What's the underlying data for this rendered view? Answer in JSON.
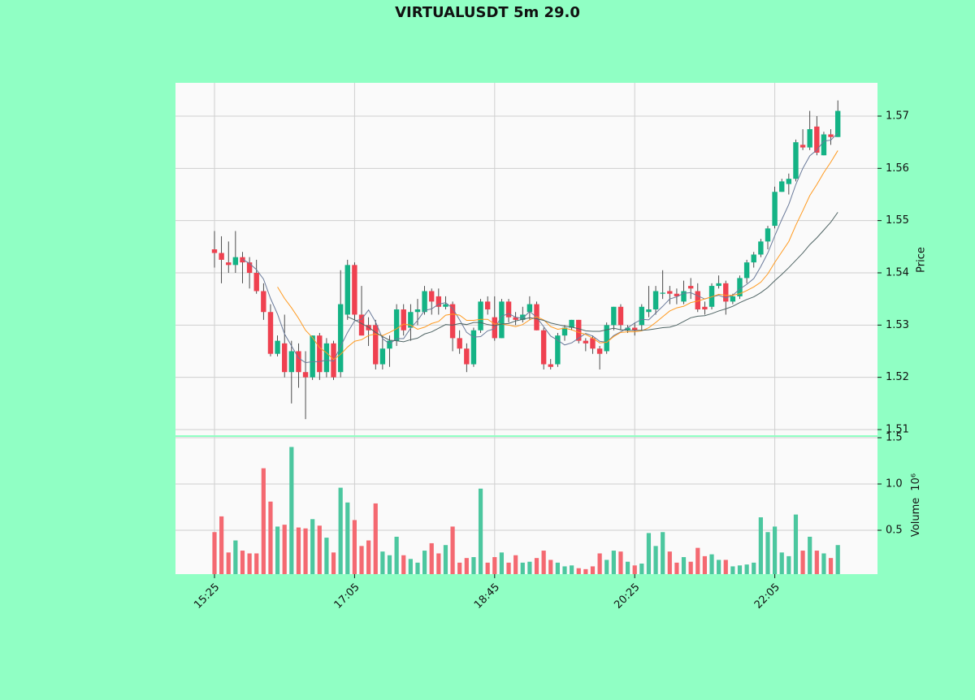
{
  "chart_data": {
    "type": "candlestick",
    "title": "VIRTUALUSDT 5m 29.0",
    "categories": [
      "15:25",
      null,
      null,
      null,
      null,
      null,
      null,
      null,
      null,
      null,
      null,
      null,
      null,
      null,
      null,
      null,
      null,
      null,
      null,
      null,
      "17:05",
      null,
      null,
      null,
      null,
      null,
      null,
      null,
      null,
      null,
      null,
      null,
      null,
      null,
      null,
      null,
      null,
      null,
      null,
      null,
      "18:45",
      null,
      null,
      null,
      null,
      null,
      null,
      null,
      null,
      null,
      null,
      null,
      null,
      null,
      null,
      null,
      null,
      null,
      null,
      null,
      "20:25",
      null,
      null,
      null,
      null,
      null,
      null,
      null,
      null,
      null,
      null,
      null,
      null,
      null,
      null,
      null,
      null,
      null,
      null,
      null,
      "22:05",
      null,
      null,
      null,
      null,
      null,
      null,
      null,
      null,
      null
    ],
    "open": [
      1.5445,
      1.5438,
      1.542,
      1.5415,
      1.543,
      1.542,
      1.54,
      1.5365,
      1.5325,
      1.5245,
      1.5265,
      1.521,
      1.525,
      1.521,
      1.52,
      1.528,
      1.521,
      1.5265,
      1.521,
      1.532,
      1.5415,
      1.532,
      1.53,
      1.53,
      1.5225,
      1.5255,
      1.527,
      1.533,
      1.5295,
      1.5325,
      1.5325,
      1.5365,
      1.5355,
      1.5335,
      1.534,
      1.5275,
      1.5255,
      1.5225,
      1.529,
      1.5345,
      1.5315,
      1.5275,
      1.5345,
      1.5315,
      1.531,
      1.5325,
      1.534,
      1.529,
      1.5225,
      1.5225,
      1.528,
      1.5295,
      1.531,
      1.527,
      1.5275,
      1.5255,
      1.525,
      1.53,
      1.5335,
      1.529,
      1.5295,
      1.53,
      1.5325,
      1.533,
      1.536,
      1.5365,
      1.536,
      1.5345,
      1.5375,
      1.5365,
      1.5335,
      1.5335,
      1.5375,
      1.538,
      1.5345,
      1.5355,
      1.539,
      1.542,
      1.5435,
      1.546,
      1.549,
      1.5555,
      1.557,
      1.558,
      1.5645,
      1.564,
      1.568,
      1.5625,
      1.5665,
      1.566
    ],
    "high": [
      1.548,
      1.547,
      1.546,
      1.548,
      1.544,
      1.543,
      1.5425,
      1.538,
      1.534,
      1.528,
      1.532,
      1.527,
      1.5265,
      1.525,
      1.528,
      1.5285,
      1.5275,
      1.527,
      1.5405,
      1.5425,
      1.542,
      1.5375,
      1.5315,
      1.531,
      1.528,
      1.528,
      1.534,
      1.534,
      1.534,
      1.535,
      1.5375,
      1.537,
      1.537,
      1.5355,
      1.5345,
      1.529,
      1.5265,
      1.5295,
      1.535,
      1.5355,
      1.5355,
      1.535,
      1.535,
      1.5325,
      1.5335,
      1.5355,
      1.5345,
      1.5295,
      1.5235,
      1.5285,
      1.53,
      1.531,
      1.531,
      1.5275,
      1.528,
      1.526,
      1.5305,
      1.5335,
      1.534,
      1.53,
      1.5305,
      1.534,
      1.5375,
      1.5375,
      1.5405,
      1.5375,
      1.537,
      1.5385,
      1.539,
      1.538,
      1.5345,
      1.538,
      1.5395,
      1.5385,
      1.536,
      1.5395,
      1.5425,
      1.544,
      1.5465,
      1.549,
      1.5565,
      1.558,
      1.559,
      1.5655,
      1.5675,
      1.571,
      1.57,
      1.567,
      1.5675,
      1.573
    ],
    "low": [
      1.541,
      1.538,
      1.54,
      1.54,
      1.538,
      1.537,
      1.536,
      1.531,
      1.524,
      1.524,
      1.52,
      1.515,
      1.518,
      1.512,
      1.5195,
      1.5195,
      1.52,
      1.5195,
      1.52,
      1.531,
      1.531,
      1.528,
      1.526,
      1.5215,
      1.5215,
      1.522,
      1.526,
      1.528,
      1.527,
      1.53,
      1.532,
      1.532,
      1.532,
      1.533,
      1.525,
      1.5245,
      1.521,
      1.522,
      1.5285,
      1.532,
      1.527,
      1.5275,
      1.5305,
      1.53,
      1.5305,
      1.531,
      1.529,
      1.5215,
      1.5215,
      1.522,
      1.527,
      1.529,
      1.5265,
      1.525,
      1.5245,
      1.5215,
      1.5245,
      1.529,
      1.529,
      1.5285,
      1.528,
      1.529,
      1.5315,
      1.532,
      1.535,
      1.534,
      1.534,
      1.534,
      1.535,
      1.5325,
      1.532,
      1.533,
      1.537,
      1.532,
      1.534,
      1.535,
      1.538,
      1.541,
      1.543,
      1.5445,
      1.5485,
      1.5555,
      1.555,
      1.5575,
      1.5635,
      1.5635,
      1.5625,
      1.5625,
      1.5645,
      1.566
    ],
    "close": [
      1.5438,
      1.5425,
      1.5415,
      1.543,
      1.542,
      1.54,
      1.5365,
      1.5325,
      1.5245,
      1.527,
      1.521,
      1.525,
      1.521,
      1.52,
      1.528,
      1.521,
      1.5265,
      1.52,
      1.534,
      1.5415,
      1.532,
      1.528,
      1.529,
      1.5225,
      1.5255,
      1.527,
      1.533,
      1.529,
      1.5325,
      1.533,
      1.5365,
      1.5345,
      1.5335,
      1.534,
      1.5275,
      1.5255,
      1.5225,
      1.529,
      1.5345,
      1.533,
      1.5275,
      1.5345,
      1.5315,
      1.531,
      1.532,
      1.534,
      1.529,
      1.5225,
      1.522,
      1.528,
      1.5295,
      1.531,
      1.527,
      1.5265,
      1.5255,
      1.5245,
      1.53,
      1.5335,
      1.53,
      1.5295,
      1.529,
      1.5335,
      1.533,
      1.5365,
      1.5362,
      1.536,
      1.5355,
      1.5365,
      1.537,
      1.533,
      1.533,
      1.5375,
      1.538,
      1.5345,
      1.5355,
      1.539,
      1.542,
      1.5435,
      1.546,
      1.5485,
      1.5555,
      1.5575,
      1.558,
      1.565,
      1.564,
      1.5675,
      1.563,
      1.5665,
      1.566,
      1.571
    ],
    "up_color": "#14b385",
    "down_color": "#ef4150",
    "ylabel": "Price",
    "ylim": [
      1.50891,
      1.57637
    ],
    "yticks": [
      1.51,
      1.52,
      1.53,
      1.54,
      1.55,
      1.56,
      1.57
    ],
    "grid": true,
    "moving_averages": [
      {
        "color": "#6a7a9a",
        "values": [
          null,
          null,
          null,
          null,
          1.5426,
          1.5418,
          1.5406,
          1.5388,
          1.5351,
          1.5321,
          1.5283,
          1.526,
          1.5237,
          1.5228,
          1.523,
          1.523,
          1.5233,
          1.5231,
          1.5259,
          1.5286,
          1.5308,
          1.5311,
          1.5329,
          1.5306,
          1.5274,
          1.5264,
          1.5274,
          1.5274,
          1.5294,
          1.5309,
          1.5328,
          1.5331,
          1.534,
          1.5343,
          1.5332,
          1.531,
          1.5286,
          1.5277,
          1.5278,
          1.5289,
          1.5293,
          1.5317,
          1.5322,
          1.5315,
          1.5313,
          1.5326,
          1.5315,
          1.5297,
          1.5279,
          1.5271,
          1.5262,
          1.5266,
          1.5275,
          1.5284,
          1.5279,
          1.5269,
          1.5267,
          1.528,
          1.5287,
          1.5295,
          1.5304,
          1.5311,
          1.531,
          1.5323,
          1.5336,
          1.535,
          1.5354,
          1.5361,
          1.5362,
          1.5356,
          1.535,
          1.5354,
          1.5357,
          1.5352,
          1.5357,
          1.5369,
          1.5378,
          1.5389,
          1.5412,
          1.5438,
          1.5471,
          1.5502,
          1.5531,
          1.5569,
          1.56,
          1.5624,
          1.5635,
          1.5652,
          1.5654,
          1.5668
        ]
      },
      {
        "color": "#ff9a1f",
        "values": [
          null,
          null,
          null,
          null,
          null,
          null,
          null,
          null,
          null,
          1.5373,
          1.5351,
          1.5333,
          1.5313,
          1.529,
          1.5276,
          1.5257,
          1.5247,
          1.5234,
          1.5244,
          1.5258,
          1.5269,
          1.5272,
          1.528,
          1.5283,
          1.528,
          1.5286,
          1.5293,
          1.5302,
          1.53,
          1.5292,
          1.5296,
          1.5303,
          1.5307,
          1.5319,
          1.5321,
          1.5319,
          1.5309,
          1.5309,
          1.5311,
          1.5311,
          1.5302,
          1.5302,
          1.53,
          1.5297,
          1.5301,
          1.531,
          1.5316,
          1.531,
          1.5297,
          1.5292,
          1.5294,
          1.5291,
          1.5286,
          1.5282,
          1.5275,
          1.5266,
          1.5267,
          1.5278,
          1.5286,
          1.5287,
          1.5287,
          1.5289,
          1.5295,
          1.5305,
          1.5316,
          1.5327,
          1.5333,
          1.5336,
          1.5343,
          1.5346,
          1.535,
          1.5354,
          1.5359,
          1.5357,
          1.5357,
          1.536,
          1.5366,
          1.5373,
          1.5382,
          1.5398,
          1.542,
          1.544,
          1.546,
          1.5491,
          1.5519,
          1.5548,
          1.5569,
          1.5592,
          1.5612,
          1.5634
        ]
      },
      {
        "color": "#4f6464",
        "values": [
          null,
          null,
          null,
          null,
          null,
          null,
          null,
          null,
          null,
          null,
          null,
          null,
          null,
          null,
          null,
          null,
          null,
          null,
          null,
          1.5316,
          1.531,
          1.5303,
          1.5296,
          1.5286,
          1.5278,
          1.5271,
          1.527,
          1.5268,
          1.5272,
          1.5275,
          1.5283,
          1.5287,
          1.5294,
          1.5301,
          1.53,
          1.5303,
          1.5301,
          1.5305,
          1.5305,
          1.5301,
          1.5299,
          1.5302,
          1.5303,
          1.5308,
          1.5311,
          1.5314,
          1.5312,
          1.5309,
          1.5304,
          1.5301,
          1.5298,
          1.5296,
          1.5293,
          1.5289,
          1.5288,
          1.5288,
          1.5291,
          1.5294,
          1.5291,
          1.529,
          1.529,
          1.529,
          1.5291,
          1.5293,
          1.5295,
          1.5296,
          1.53,
          1.5307,
          1.5314,
          1.5317,
          1.5318,
          1.5322,
          1.5327,
          1.5331,
          1.5336,
          1.5343,
          1.5349,
          1.5354,
          1.5362,
          1.5372,
          1.5385,
          1.5397,
          1.541,
          1.5424,
          1.5438,
          1.5454,
          1.5467,
          1.5482,
          1.5497,
          1.5516
        ]
      }
    ],
    "volume": {
      "ylabel": "Volume",
      "offset_label": "10⁶",
      "up_color": "#4cc79f",
      "down_color": "#f46971",
      "values": [
        0.48,
        0.65,
        0.26,
        0.39,
        0.28,
        0.25,
        0.25,
        1.17,
        0.81,
        0.54,
        0.56,
        1.4,
        0.53,
        0.52,
        0.62,
        0.55,
        0.42,
        0.26,
        0.96,
        0.8,
        0.61,
        0.33,
        0.39,
        0.79,
        0.27,
        0.23,
        0.43,
        0.23,
        0.19,
        0.15,
        0.28,
        0.36,
        0.25,
        0.34,
        0.54,
        0.15,
        0.2,
        0.21,
        0.95,
        0.15,
        0.21,
        0.26,
        0.15,
        0.23,
        0.15,
        0.16,
        0.2,
        0.28,
        0.18,
        0.15,
        0.11,
        0.12,
        0.09,
        0.08,
        0.11,
        0.25,
        0.18,
        0.28,
        0.27,
        0.16,
        0.12,
        0.14,
        0.47,
        0.33,
        0.48,
        0.27,
        0.15,
        0.21,
        0.16,
        0.31,
        0.22,
        0.24,
        0.18,
        0.18,
        0.11,
        0.12,
        0.13,
        0.15,
        0.64,
        0.48,
        0.54,
        0.26,
        0.22,
        0.67,
        0.28,
        0.43,
        0.28,
        0.25,
        0.2,
        0.34
      ],
      "ylim": [
        0.026,
        1.509
      ],
      "yticks": [
        0.5,
        {
          "value": 1.0,
          "label": "1.0"
        },
        1.5
      ]
    }
  }
}
